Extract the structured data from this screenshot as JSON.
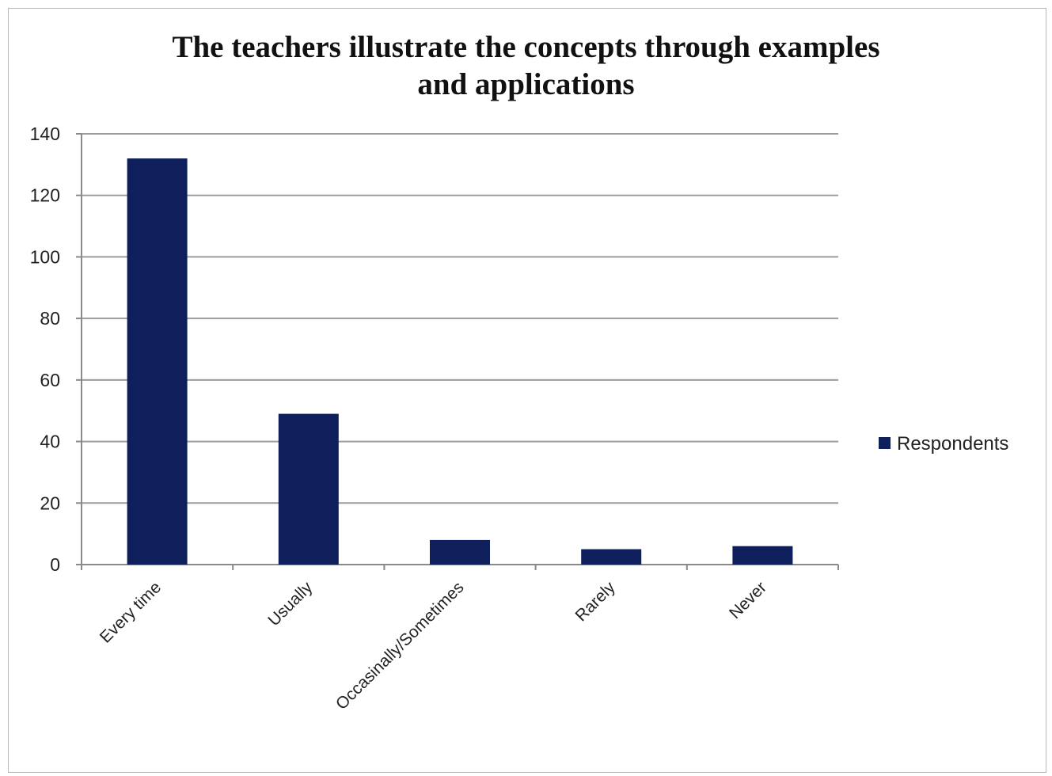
{
  "chart_data": {
    "type": "bar",
    "title": [
      "The teachers illustrate the concepts through examples",
      "and applications"
    ],
    "categories": [
      "Every time",
      "Usually",
      "Occasinally/Sometimes",
      "Rarely",
      "Never"
    ],
    "series": [
      {
        "name": "Respondents",
        "values": [
          132,
          49,
          8,
          5,
          6
        ],
        "color": "#0f1f5c"
      }
    ],
    "ylim": [
      0,
      140
    ],
    "yticks": [
      0,
      20,
      40,
      60,
      80,
      100,
      120,
      140
    ],
    "grid": true,
    "legend_position": "right",
    "xlabel": "",
    "ylabel": ""
  }
}
